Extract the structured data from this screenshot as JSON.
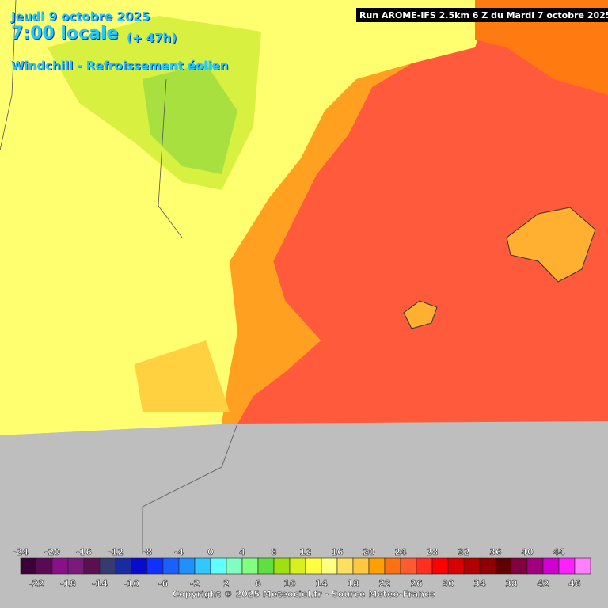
{
  "header": {
    "date": "Jeudi 9 octobre 2025",
    "time": "7:00 locale",
    "lead": "(+ 47h)",
    "product": "Windchill - Refroissement éolien",
    "run": "Run AROME-IFS 2.5km 6 Z du Mardi 7 octobre 2025"
  },
  "legend": {
    "labels": [
      -24,
      -22,
      -20,
      -18,
      -16,
      -14,
      -12,
      -10,
      -8,
      -6,
      -4,
      -2,
      0,
      2,
      4,
      6,
      8,
      10,
      12,
      14,
      16,
      18,
      20,
      22,
      24,
      26,
      28,
      30,
      32,
      34,
      36,
      38,
      40,
      42,
      44,
      46
    ],
    "colors": [
      "#3c0038",
      "#5a0a55",
      "#8a108a",
      "#7a1a7a",
      "#5a1050",
      "#363a6e",
      "#1a2aa0",
      "#0a0acd",
      "#1030ff",
      "#1a60ff",
      "#2090ff",
      "#30c8ff",
      "#60ffff",
      "#80ffc0",
      "#80ff80",
      "#60e040",
      "#a0e010",
      "#d8f020",
      "#ffff40",
      "#ffff80",
      "#ffe060",
      "#ffc840",
      "#ffa000",
      "#ff7010",
      "#ff5a30",
      "#ff3020",
      "#ff0000",
      "#d80000",
      "#b00000",
      "#900000",
      "#600000",
      "#800040",
      "#a00080",
      "#d000d0",
      "#ff20ff",
      "#ff80ff"
    ]
  },
  "footer": {
    "copyright": "Copyright © 2025 Meteociel.fr - Source Meteo-France"
  }
}
